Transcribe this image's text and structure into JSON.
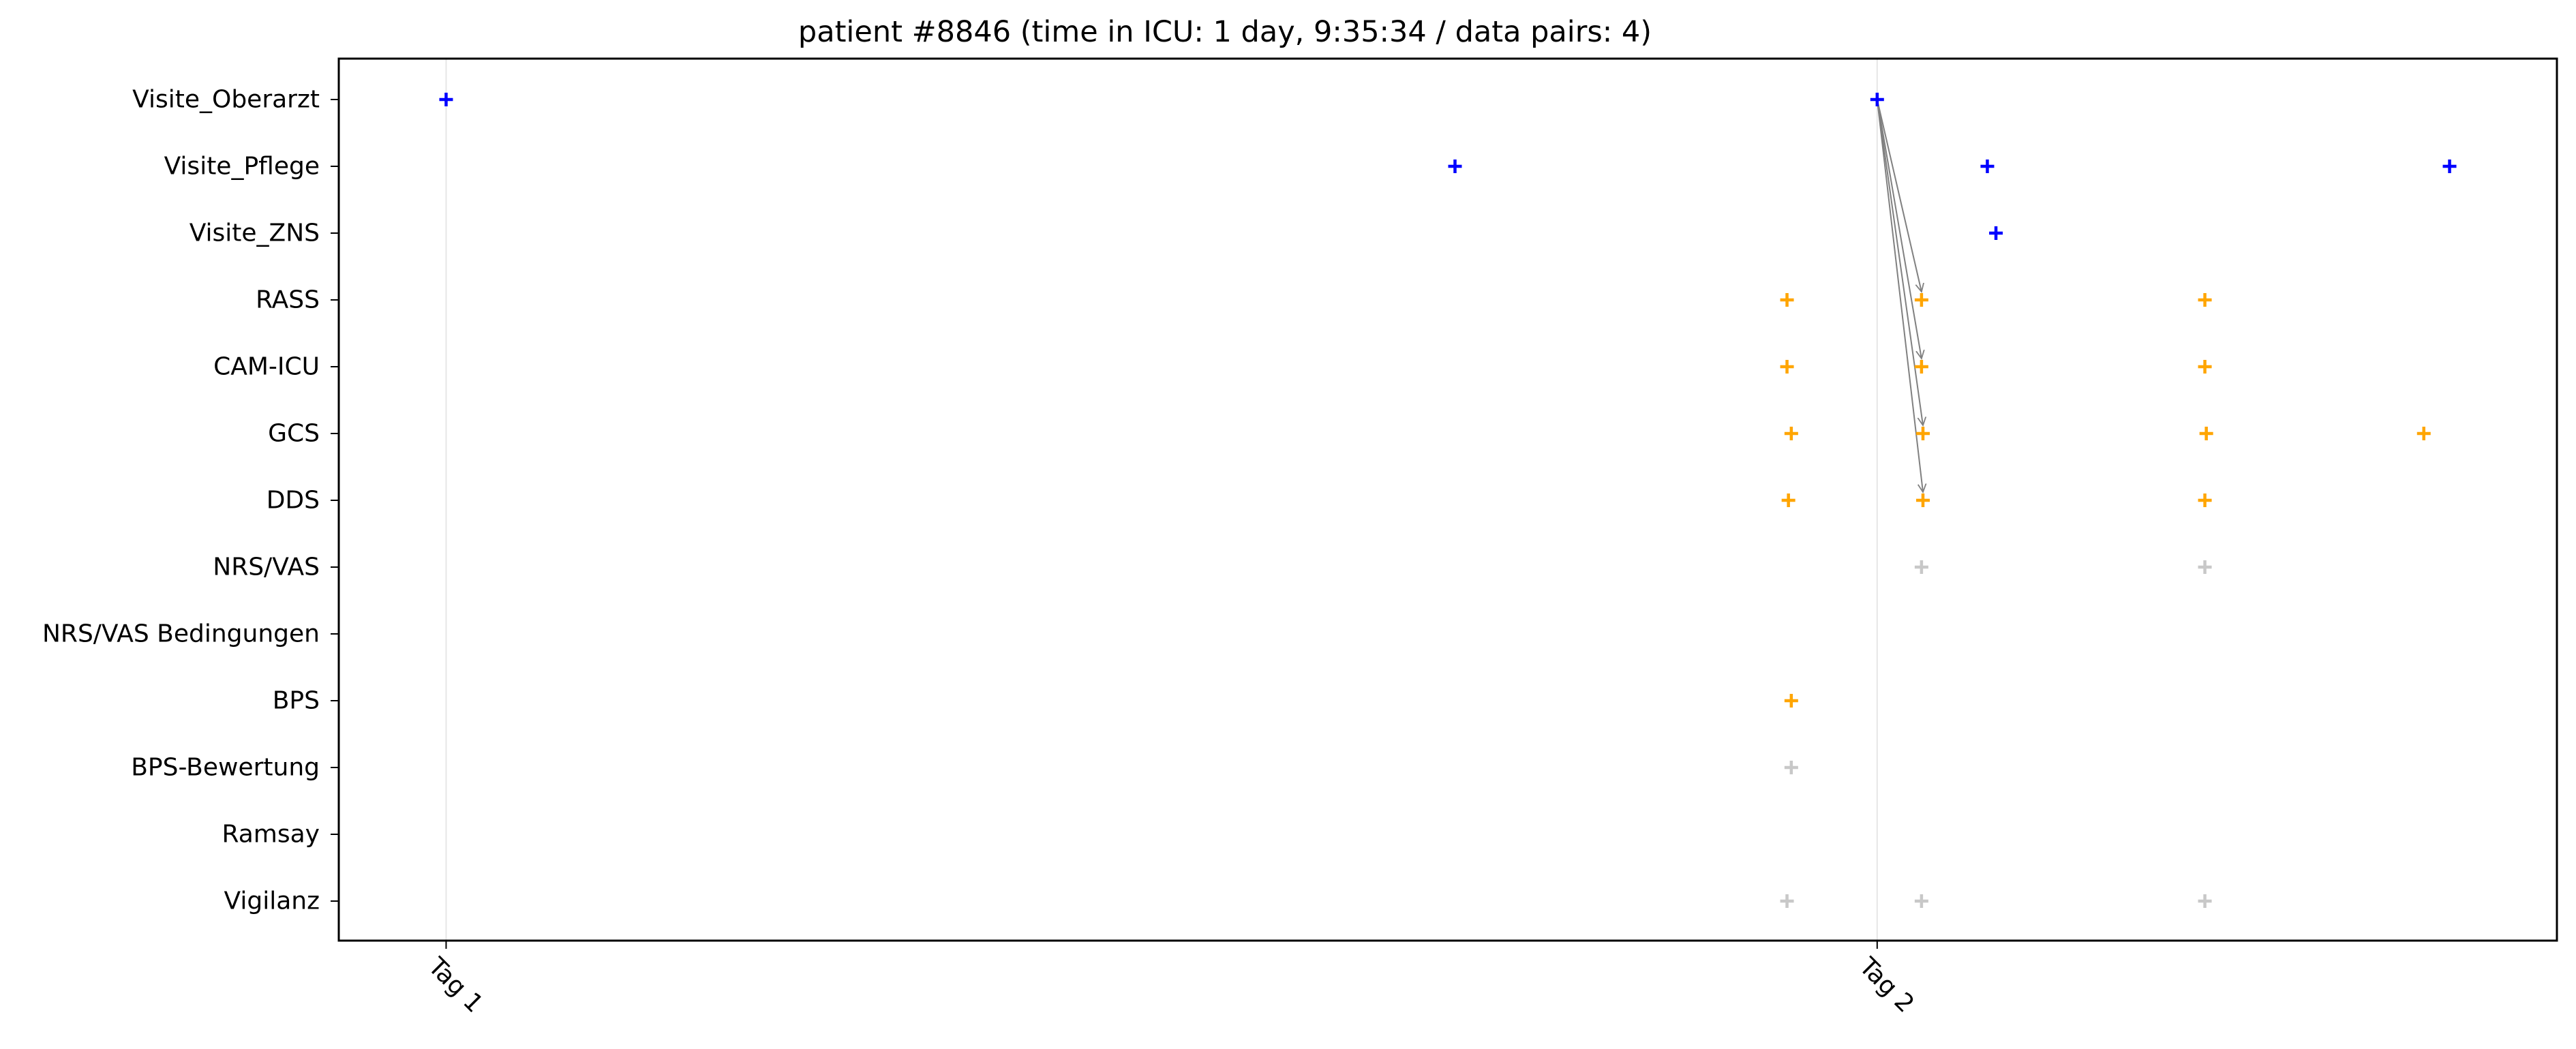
{
  "chart_data": {
    "type": "scatter",
    "title": "patient #8846 (time in ICU: 1 day, 9:35:34 / data pairs: 4)",
    "xlabel": "",
    "ylabel": "",
    "x_ticks": [
      {
        "label": "Tag 1",
        "value": 0
      },
      {
        "label": "Tag 2",
        "value": 1
      }
    ],
    "xlim": [
      -0.075,
      1.475
    ],
    "grid": "vertical lines at day ticks",
    "categories": [
      "Visite_Oberarzt",
      "Visite_Pflege",
      "Visite_ZNS",
      "RASS",
      "CAM-ICU",
      "GCS",
      "DDS",
      "NRS/VAS",
      "NRS/VAS Bedingungen",
      "BPS",
      "BPS-Bewertung",
      "Ramsay",
      "Vigilanz"
    ],
    "colors": {
      "visit": "#0000ff",
      "assessment": "#ffa500",
      "inactive": "#c8c8c8",
      "arrow": "#808080",
      "grid": "#e6e6e6"
    },
    "series": [
      {
        "category": "Visite_Oberarzt",
        "color": "visit",
        "x": [
          0.0,
          1.0
        ]
      },
      {
        "category": "Visite_Pflege",
        "color": "visit",
        "x": [
          0.705,
          1.077,
          1.4
        ]
      },
      {
        "category": "Visite_ZNS",
        "color": "visit",
        "x": [
          1.083
        ]
      },
      {
        "category": "RASS",
        "color": "assessment",
        "x": [
          0.937,
          1.031,
          1.229
        ]
      },
      {
        "category": "CAM-ICU",
        "color": "assessment",
        "x": [
          0.937,
          1.031,
          1.229
        ]
      },
      {
        "category": "GCS",
        "color": "assessment",
        "x": [
          0.94,
          1.032,
          1.23,
          1.382
        ]
      },
      {
        "category": "DDS",
        "color": "assessment",
        "x": [
          0.938,
          1.032,
          1.229
        ]
      },
      {
        "category": "NRS/VAS",
        "color": "inactive",
        "x": [
          1.031,
          1.229
        ]
      },
      {
        "category": "NRS/VAS Bedingungen",
        "color": "inactive",
        "x": []
      },
      {
        "category": "BPS",
        "color": "assessment",
        "x": [
          0.94
        ]
      },
      {
        "category": "BPS-Bewertung",
        "color": "inactive",
        "x": [
          0.94
        ]
      },
      {
        "category": "Ramsay",
        "color": "inactive",
        "x": []
      },
      {
        "category": "Vigilanz",
        "color": "inactive",
        "x": [
          0.937,
          1.031,
          1.229
        ]
      }
    ],
    "pairs": [
      {
        "from": {
          "category": "Visite_Oberarzt",
          "x": 1.0
        },
        "to": {
          "category": "RASS",
          "x": 1.031
        }
      },
      {
        "from": {
          "category": "Visite_Oberarzt",
          "x": 1.0
        },
        "to": {
          "category": "CAM-ICU",
          "x": 1.031
        }
      },
      {
        "from": {
          "category": "Visite_Oberarzt",
          "x": 1.0
        },
        "to": {
          "category": "GCS",
          "x": 1.032
        }
      },
      {
        "from": {
          "category": "Visite_Oberarzt",
          "x": 1.0
        },
        "to": {
          "category": "DDS",
          "x": 1.032
        }
      }
    ]
  }
}
